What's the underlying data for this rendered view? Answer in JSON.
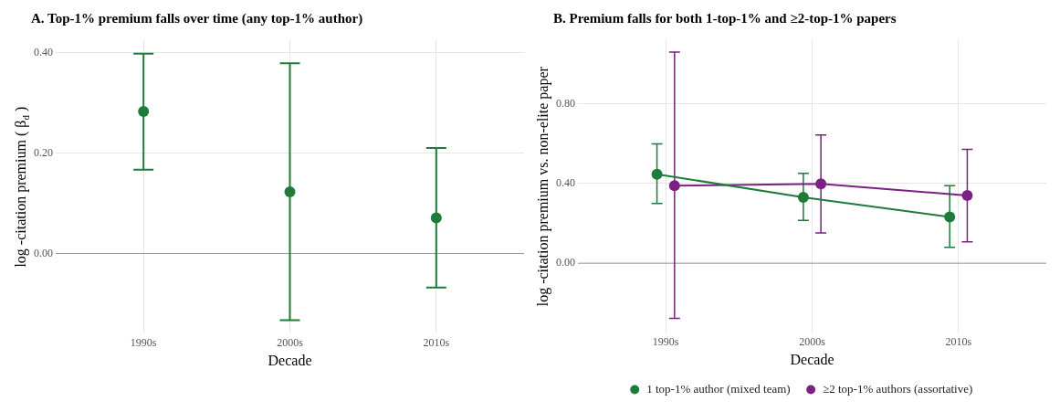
{
  "chart_data": [
    {
      "type": "scatter",
      "title": "A. Top-1% premium falls over time (any top-1% author)",
      "xlabel": "Decade",
      "ylabel": "log -citation premium ( β$_{d}$ )",
      "categories": [
        "1990s",
        "2000s",
        "2010s"
      ],
      "series": [
        {
          "color": "#1e7b3a",
          "values": [
            0.283,
            0.123,
            0.071
          ],
          "errors": [
            [
              0.167,
              0.398
            ],
            [
              -0.133,
              0.379
            ],
            [
              -0.068,
              0.21
            ]
          ]
        }
      ],
      "ylim": [
        -0.16,
        0.425
      ],
      "yticks": [
        {
          "value": 0,
          "label": "0.00"
        },
        {
          "value": 0.2,
          "label": "0.20"
        },
        {
          "value": 0.4,
          "label": "0.40"
        }
      ],
      "grid": true,
      "marker": "circle",
      "ref_lines": [
        {
          "axis": "y",
          "value": 0,
          "color": "#999999"
        }
      ]
    },
    {
      "type": "line",
      "title": "B. Premium falls for both 1-top-1% and ≥2-top-1% papers",
      "xlabel": "Decade",
      "ylabel": "log -citation premium vs. non-elite paper",
      "categories": [
        "1990s",
        "2000s",
        "2010s"
      ],
      "series": [
        {
          "name": "1 top-1% author (mixed team)",
          "color": "#1e7b3a",
          "values": [
            0.447,
            0.331,
            0.232
          ],
          "errors": [
            [
              0.3,
              0.599
            ],
            [
              0.215,
              0.451
            ],
            [
              0.08,
              0.389
            ]
          ]
        },
        {
          "name": "≥2 top-1% authors (assortative)",
          "color": "#7b2183",
          "values": [
            0.389,
            0.398,
            0.34
          ],
          "errors": [
            [
              -0.277,
              1.06
            ],
            [
              0.152,
              0.644
            ],
            [
              0.107,
              0.572
            ]
          ]
        }
      ],
      "ylim": [
        -0.35,
        1.12
      ],
      "yticks": [
        {
          "value": 0,
          "label": "0.00"
        },
        {
          "value": 0.4,
          "label": "0.40"
        },
        {
          "value": 0.8,
          "label": "0.80"
        }
      ],
      "grid": true,
      "marker": "circle",
      "legend": "bottom",
      "ref_lines": [
        {
          "axis": "y",
          "value": 0,
          "color": "#999999"
        }
      ]
    }
  ]
}
